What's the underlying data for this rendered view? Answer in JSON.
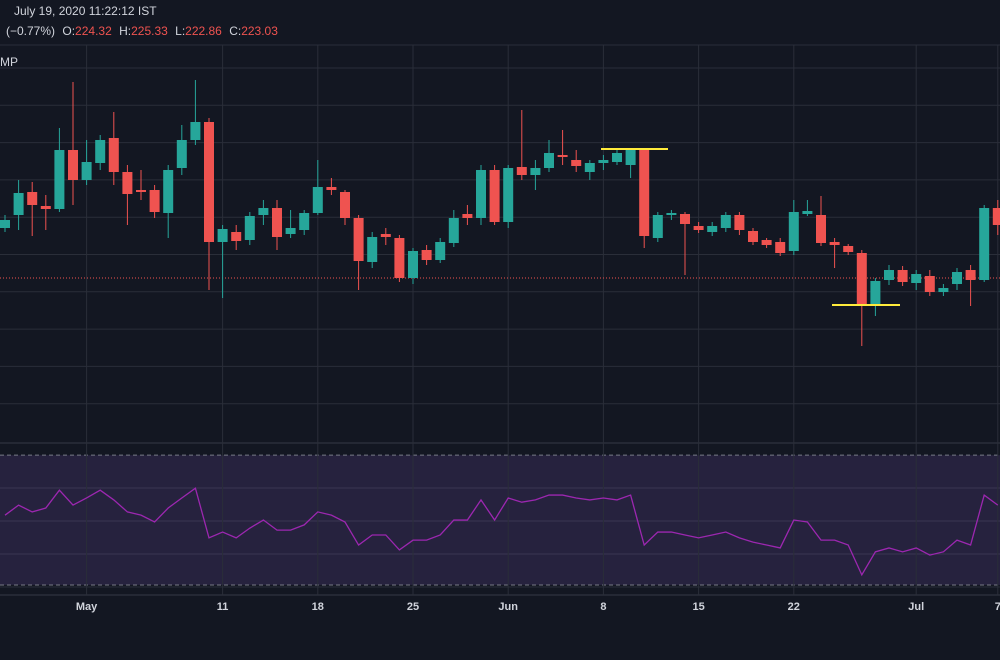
{
  "header": {
    "datetime": "July 19, 2020 11:22:12 IST",
    "change": "(−0.77%)",
    "ohlc": [
      {
        "label": "O:",
        "value": "224.32"
      },
      {
        "label": "H:",
        "value": "225.33"
      },
      {
        "label": "L:",
        "value": "222.86"
      },
      {
        "label": "C:",
        "value": "223.03"
      }
    ],
    "indicator": "MP"
  },
  "chart_data": {
    "type": "candlestick",
    "categories": [
      null,
      null,
      null,
      null,
      null,
      null,
      "May",
      null,
      null,
      null,
      null,
      null,
      null,
      null,
      null,
      null,
      "11",
      null,
      null,
      null,
      null,
      null,
      null,
      "18",
      null,
      null,
      null,
      null,
      null,
      null,
      "25",
      null,
      null,
      null,
      null,
      null,
      null,
      "Jun",
      null,
      null,
      null,
      null,
      null,
      null,
      "8",
      null,
      null,
      null,
      null,
      null,
      null,
      "15",
      null,
      null,
      null,
      null,
      null,
      null,
      "22",
      null,
      null,
      null,
      null,
      null,
      null,
      null,
      null,
      "Jul",
      null,
      null,
      null,
      null,
      null,
      "7"
    ],
    "open": [
      221.2,
      222.5,
      224.8,
      223.4,
      223.1,
      229.0,
      226.0,
      227.7,
      230.2,
      226.8,
      225.0,
      225.0,
      222.7,
      227.2,
      230.0,
      231.8,
      219.8,
      220.8,
      220.0,
      222.5,
      223.2,
      220.6,
      221.0,
      222.7,
      225.3,
      224.8,
      222.2,
      217.8,
      220.6,
      220.2,
      216.2,
      219.0,
      218.0,
      219.7,
      222.6,
      222.2,
      227.0,
      221.8,
      227.3,
      226.5,
      227.2,
      228.5,
      228.0,
      226.8,
      227.7,
      227.8,
      227.5,
      229.0,
      220.2,
      222.5,
      222.6,
      221.4,
      220.8,
      221.2,
      222.5,
      220.9,
      220.0,
      219.8,
      218.9,
      222.6,
      222.5,
      219.8,
      219.4,
      218.7,
      213.6,
      216.0,
      217.0,
      215.7,
      216.4,
      214.8,
      215.6,
      217.0,
      216.0,
      223.2
    ],
    "high": [
      222.5,
      226.0,
      225.8,
      224.5,
      231.2,
      235.8,
      230.0,
      230.5,
      232.8,
      227.5,
      227.0,
      225.5,
      227.5,
      231.5,
      236.0,
      232.2,
      221.5,
      221.5,
      222.8,
      224.0,
      224.0,
      223.0,
      223.0,
      228.0,
      226.2,
      225.0,
      222.5,
      220.8,
      221.2,
      220.5,
      219.2,
      219.5,
      220.2,
      223.0,
      223.5,
      227.5,
      227.5,
      227.5,
      233.0,
      228.0,
      230.0,
      231.0,
      229.0,
      228.0,
      228.5,
      229.0,
      229.2,
      229.2,
      222.8,
      223.0,
      222.8,
      221.8,
      221.8,
      222.8,
      222.8,
      221.2,
      220.2,
      220.2,
      224.0,
      224.0,
      224.4,
      220.2,
      219.6,
      219.0,
      216.2,
      217.5,
      217.4,
      217.0,
      217.0,
      215.6,
      217.2,
      217.5,
      223.5,
      224.0
    ],
    "low": [
      220.8,
      221.0,
      220.4,
      221.0,
      222.8,
      223.5,
      225.5,
      227.0,
      225.5,
      221.5,
      224.0,
      222.2,
      220.2,
      226.5,
      229.5,
      215.0,
      214.2,
      219.0,
      219.5,
      221.5,
      219.0,
      220.2,
      220.5,
      222.5,
      224.5,
      221.5,
      215.0,
      217.2,
      219.5,
      215.8,
      215.6,
      217.5,
      217.7,
      219.3,
      221.5,
      221.5,
      221.5,
      221.2,
      226.0,
      225.0,
      226.8,
      227.5,
      226.8,
      226.0,
      227.0,
      227.5,
      226.2,
      219.2,
      219.8,
      222.0,
      216.5,
      220.7,
      220.4,
      220.8,
      220.5,
      219.5,
      219.2,
      218.4,
      218.5,
      222.4,
      219.4,
      217.2,
      218.5,
      209.4,
      212.4,
      215.5,
      215.4,
      215.0,
      214.4,
      214.4,
      215.0,
      213.4,
      215.8,
      220.5
    ],
    "close": [
      222.0,
      224.7,
      223.5,
      223.1,
      229.0,
      226.0,
      227.8,
      230.0,
      226.8,
      224.6,
      224.8,
      222.8,
      227.0,
      230.0,
      231.8,
      219.8,
      221.1,
      219.9,
      222.4,
      223.2,
      220.3,
      221.2,
      222.7,
      225.3,
      225.0,
      222.2,
      217.9,
      220.3,
      220.3,
      216.2,
      218.9,
      218.0,
      219.8,
      222.2,
      222.2,
      227.0,
      221.8,
      227.2,
      226.5,
      227.2,
      228.7,
      228.3,
      227.4,
      227.7,
      228.0,
      228.7,
      229.0,
      220.4,
      222.5,
      222.7,
      221.6,
      221.0,
      221.4,
      222.5,
      221.0,
      219.8,
      219.5,
      218.7,
      222.8,
      222.9,
      219.7,
      219.5,
      218.8,
      213.6,
      215.9,
      217.0,
      215.8,
      216.6,
      214.8,
      215.2,
      216.8,
      216.0,
      223.2,
      221.5
    ],
    "up_color": "#26a69a",
    "down_color": "#ef5350",
    "ylim": [
      200,
      239.5
    ],
    "grid": true,
    "price_line": 216.2,
    "price_line_color": "#ef5350",
    "rsi": {
      "values": [
        51.5,
        54.6,
        52.5,
        53.7,
        59.2,
        54.6,
        56.8,
        59.2,
        56.2,
        52.5,
        51.5,
        49.4,
        53.7,
        56.8,
        59.8,
        44.5,
        46.3,
        44.5,
        47.5,
        50.0,
        46.9,
        46.9,
        48.5,
        52.5,
        51.5,
        49.4,
        42.3,
        45.4,
        45.4,
        40.8,
        43.8,
        43.8,
        45.4,
        50.0,
        50.0,
        56.2,
        50.0,
        56.8,
        55.5,
        56.2,
        57.7,
        57.7,
        56.8,
        56.2,
        56.8,
        56.2,
        57.7,
        42.3,
        46.3,
        46.3,
        45.4,
        44.5,
        45.4,
        46.3,
        44.5,
        43.2,
        42.3,
        41.4,
        50.0,
        49.4,
        43.8,
        43.8,
        42.3,
        33.1,
        40.2,
        41.4,
        40.2,
        41.4,
        39.2,
        40.2,
        43.8,
        42.3,
        57.7,
        54.6
      ],
      "color": "#9c27b0",
      "ylim": [
        26.9,
        72.2
      ],
      "bands": [
        30,
        70
      ]
    }
  }
}
